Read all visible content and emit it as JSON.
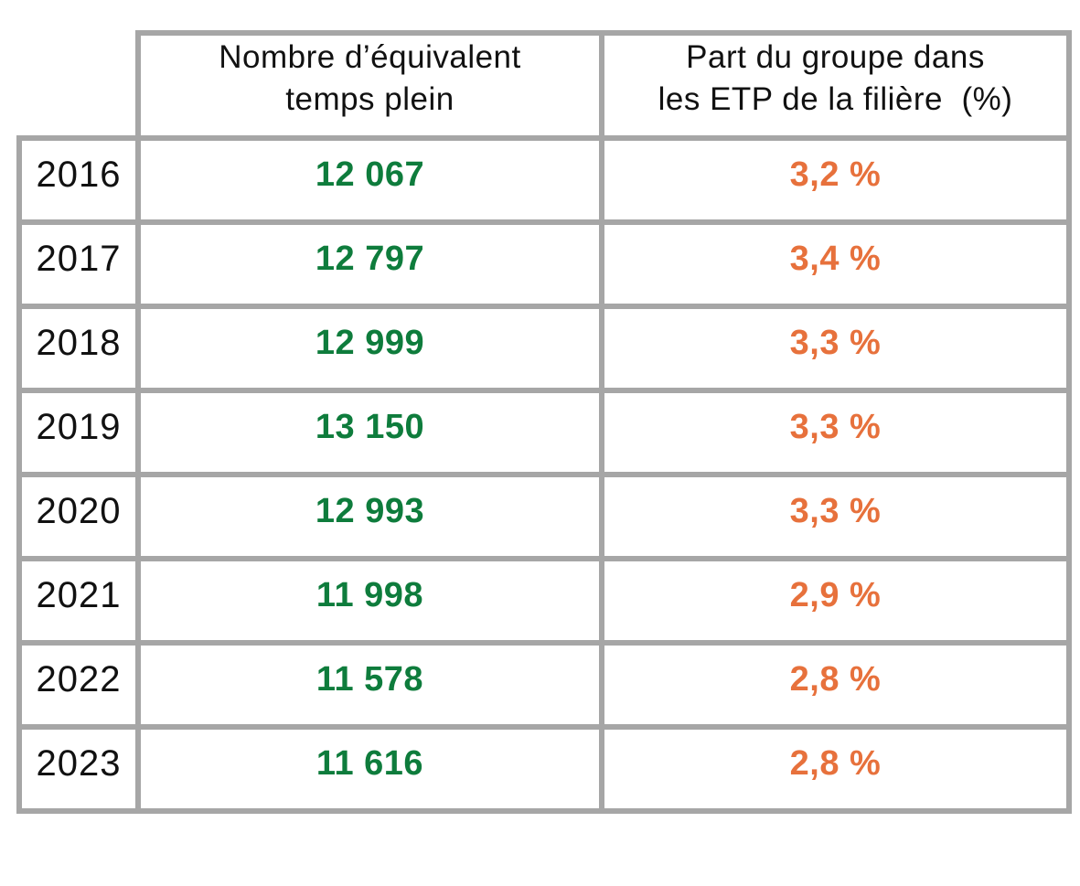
{
  "colors": {
    "border_gray": "#a6a6a6",
    "etp_green": "#0e7c3c",
    "share_orange": "#e7713c",
    "text_black": "#111111",
    "background": "#ffffff"
  },
  "table": {
    "header_etp": "Nombre d’équivalent\ntemps plein",
    "header_share": "Part du groupe dans\nles ETP de la filière  (%)",
    "rows": [
      {
        "year": "2016",
        "etp": "12 067",
        "share": "3,2 %"
      },
      {
        "year": "2017",
        "etp": "12 797",
        "share": "3,4 %"
      },
      {
        "year": "2018",
        "etp": "12 999",
        "share": "3,3 %"
      },
      {
        "year": "2019",
        "etp": "13 150",
        "share": "3,3 %"
      },
      {
        "year": "2020",
        "etp": "12 993",
        "share": "3,3 %"
      },
      {
        "year": "2021",
        "etp": "11 998",
        "share": "2,9 %"
      },
      {
        "year": "2022",
        "etp": "11 578",
        "share": "2,8 %"
      },
      {
        "year": "2023",
        "etp": "11 616",
        "share": "2,8 %"
      }
    ]
  },
  "chart_data": {
    "type": "table",
    "categories": [
      "2016",
      "2017",
      "2018",
      "2019",
      "2020",
      "2021",
      "2022",
      "2023"
    ],
    "series": [
      {
        "name": "Nombre d’équivalent temps plein",
        "values": [
          12067,
          12797,
          12999,
          13150,
          12993,
          11998,
          11578,
          11616
        ]
      },
      {
        "name": "Part du groupe dans les ETP de la filière (%)",
        "values": [
          3.2,
          3.4,
          3.3,
          3.3,
          3.3,
          2.9,
          2.8,
          2.8
        ]
      }
    ],
    "title": "",
    "xlabel": "",
    "ylabel": "",
    "layout_hints": {
      "value_color": "#0e7c3c",
      "share_color": "#e7713c",
      "grid": "on",
      "header_row_spans_data_columns_only": true
    }
  }
}
